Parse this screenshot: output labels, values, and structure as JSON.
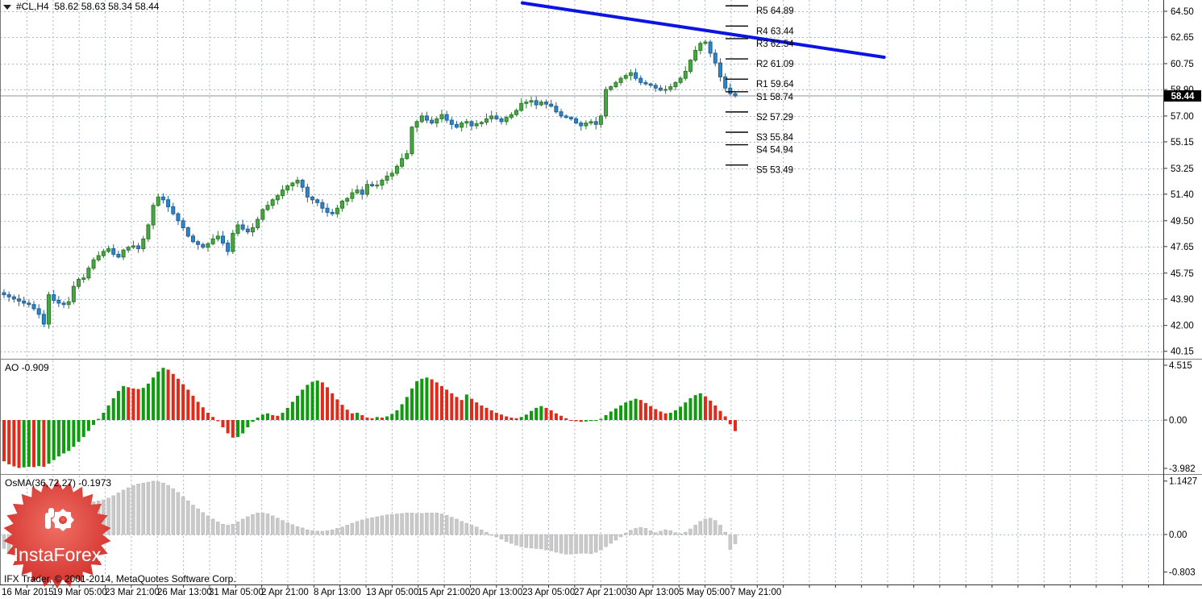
{
  "header": {
    "symbol_line": "#CL,H4  58.62 58.63 58.34 58.44"
  },
  "indicator_labels": {
    "ao": "AO -0.909",
    "osma": "OsMA(36,72,27) -0.1973"
  },
  "footer": {
    "copyright": "IFX Trader, © 2001-2014, MetaQuotes Software Corp."
  },
  "logo": {
    "text": "InstaForex",
    "color_outer": "#cf2b26",
    "color_inner": "#ef6f64"
  },
  "chart_data": {
    "type": "candlestick",
    "symbol": "#CL",
    "timeframe": "H4",
    "title": "#CL,H4",
    "last_quote": {
      "open": 58.62,
      "high": 58.63,
      "low": 58.34,
      "close": 58.44
    },
    "current_price_label": "58.44",
    "price_axis_ticks": [
      "64.50",
      "62.65",
      "60.75",
      "58.90",
      "57.00",
      "55.15",
      "53.25",
      "51.40",
      "49.50",
      "47.65",
      "45.75",
      "43.90",
      "42.00",
      "40.15"
    ],
    "time_axis_labels": [
      "16 Mar 2015",
      "19 Mar 05:00",
      "23 Mar 21:00",
      "26 Mar 13:00",
      "31 Mar 05:00",
      "2 Apr 21:00",
      "8 Apr 13:00",
      "13 Apr 05:00",
      "15 Apr 21:00",
      "20 Apr 13:00",
      "23 Apr 05:00",
      "27 Apr 21:00",
      "30 Apr 13:00",
      "5 May 05:00",
      "7 May 21:00"
    ],
    "pivot_levels": [
      {
        "label": "R5 64.89",
        "price": 64.89
      },
      {
        "label": "R4 63.44",
        "price": 63.44
      },
      {
        "label": "R3 62.54",
        "price": 62.54
      },
      {
        "label": "R2 61.09",
        "price": 61.09
      },
      {
        "label": "R1 59.64",
        "price": 59.64
      },
      {
        "label": "S1 58.74",
        "price": 58.74
      },
      {
        "label": "S2 57.29",
        "price": 57.29
      },
      {
        "label": "S3 55.84",
        "price": 55.84
      },
      {
        "label": "S4 54.94",
        "price": 54.94
      },
      {
        "label": "S5 53.49",
        "price": 53.49
      }
    ],
    "trendline": {
      "x1_frac": 0.449,
      "price1": 65.1,
      "x2_frac": 0.76,
      "price2": 61.21,
      "color": "#0b14e0"
    },
    "close_path": [
      44.2,
      44.05,
      43.9,
      43.75,
      43.6,
      43.5,
      43.2,
      42.8,
      42.1,
      44.2,
      43.8,
      43.6,
      43.5,
      43.7,
      44.8,
      45.3,
      45.4,
      46.1,
      46.7,
      47.0,
      47.3,
      47.5,
      47.1,
      46.9,
      47.4,
      47.6,
      47.7,
      47.5,
      48.2,
      49.2,
      50.6,
      51.2,
      51.0,
      50.5,
      50.0,
      49.5,
      49.0,
      48.4,
      48.0,
      47.8,
      47.6,
      47.85,
      48.2,
      48.4,
      47.9,
      47.3,
      48.6,
      49.2,
      48.9,
      48.7,
      49.0,
      49.6,
      50.3,
      50.6,
      51.0,
      51.3,
      51.7,
      52.0,
      52.2,
      52.4,
      51.9,
      51.2,
      51.0,
      50.8,
      50.4,
      50.1,
      50.0,
      50.4,
      50.9,
      51.1,
      51.5,
      51.7,
      51.4,
      52.1,
      52.0,
      52.05,
      52.4,
      52.7,
      52.9,
      53.4,
      53.95,
      54.3,
      56.2,
      56.6,
      57.0,
      56.7,
      56.5,
      56.8,
      57.1,
      56.7,
      56.4,
      56.2,
      56.5,
      56.6,
      56.3,
      56.45,
      56.55,
      56.8,
      57.0,
      56.8,
      56.6,
      56.9,
      57.1,
      57.4,
      57.9,
      58.0,
      58.1,
      57.8,
      58.0,
      57.85,
      57.7,
      57.3,
      57.0,
      56.9,
      56.8,
      56.5,
      56.3,
      56.5,
      56.6,
      56.4,
      57.0,
      58.9,
      59.1,
      59.4,
      59.7,
      59.9,
      60.1,
      59.7,
      59.4,
      59.3,
      59.2,
      59.0,
      58.85,
      58.9,
      59.1,
      59.4,
      59.7,
      60.2,
      61.0,
      61.7,
      62.2,
      62.3,
      61.5,
      60.8,
      59.8,
      59.0,
      58.6,
      58.44
    ],
    "indicators": [
      {
        "name": "AO",
        "current": -0.909,
        "axis_ticks": [
          "4.515",
          "0.00",
          "-3.982"
        ],
        "color_up": "#0e9c0e",
        "color_down": "#e02a1a",
        "values": [
          -3.4,
          -3.65,
          -3.82,
          -3.95,
          -3.9,
          -3.85,
          -3.88,
          -3.8,
          -3.85,
          -3.6,
          -3.3,
          -3.0,
          -2.75,
          -2.55,
          -2.2,
          -1.8,
          -1.4,
          -0.9,
          -0.4,
          0.1,
          0.6,
          1.2,
          1.8,
          2.4,
          2.8,
          2.7,
          2.6,
          2.55,
          2.65,
          3.0,
          3.5,
          4.0,
          4.3,
          4.15,
          3.8,
          3.4,
          2.95,
          2.5,
          2.0,
          1.5,
          1.05,
          0.6,
          0.25,
          -0.1,
          -0.6,
          -1.1,
          -1.45,
          -1.4,
          -1.1,
          -0.6,
          -0.15,
          0.2,
          0.45,
          0.55,
          0.4,
          0.35,
          0.6,
          1.0,
          1.5,
          2.0,
          2.5,
          2.9,
          3.15,
          3.25,
          3.1,
          2.7,
          2.2,
          1.7,
          1.25,
          0.85,
          0.55,
          0.6,
          0.4,
          0.2,
          0.15,
          0.25,
          0.2,
          0.3,
          0.5,
          0.8,
          1.3,
          1.9,
          2.6,
          3.2,
          3.4,
          3.5,
          3.35,
          3.1,
          2.8,
          2.5,
          2.2,
          1.9,
          1.65,
          2.1,
          1.75,
          1.45,
          1.2,
          1.0,
          0.8,
          0.6,
          0.45,
          0.3,
          0.2,
          0.15,
          0.25,
          0.45,
          0.75,
          1.0,
          1.15,
          1.0,
          0.8,
          0.55,
          0.35,
          0.15,
          0.0,
          -0.1,
          -0.15,
          -0.12,
          -0.08,
          -0.05,
          0.1,
          0.4,
          0.7,
          0.95,
          1.2,
          1.45,
          1.6,
          1.75,
          1.65,
          1.4,
          1.15,
          0.9,
          0.7,
          0.55,
          0.6,
          0.8,
          1.1,
          1.45,
          1.8,
          2.05,
          2.2,
          1.95,
          1.6,
          1.2,
          0.75,
          0.3,
          -0.35,
          -0.909
        ]
      },
      {
        "name": "OsMA",
        "params": [
          36,
          72,
          27
        ],
        "current": -0.1973,
        "axis_ticks": [
          "1.1427",
          "0.00",
          "-0.803"
        ],
        "color": "#c9c9c9",
        "values": [
          -0.3,
          -0.38,
          -0.44,
          -0.47,
          -0.45,
          -0.4,
          -0.32,
          -0.22,
          -0.12,
          -0.02,
          0.08,
          0.18,
          0.28,
          0.38,
          0.48,
          0.56,
          0.62,
          0.66,
          0.7,
          0.72,
          0.74,
          0.78,
          0.83,
          0.89,
          0.95,
          1.0,
          1.05,
          1.08,
          1.1,
          1.12,
          1.14,
          1.13,
          1.1,
          1.05,
          0.98,
          0.9,
          0.81,
          0.72,
          0.63,
          0.55,
          0.47,
          0.4,
          0.33,
          0.27,
          0.22,
          0.2,
          0.22,
          0.27,
          0.33,
          0.38,
          0.43,
          0.46,
          0.46,
          0.44,
          0.4,
          0.35,
          0.3,
          0.25,
          0.21,
          0.17,
          0.14,
          0.1,
          0.08,
          0.07,
          0.07,
          0.08,
          0.1,
          0.13,
          0.16,
          0.2,
          0.24,
          0.28,
          0.31,
          0.34,
          0.36,
          0.38,
          0.4,
          0.42,
          0.43,
          0.44,
          0.45,
          0.46,
          0.46,
          0.45,
          0.45,
          0.46,
          0.46,
          0.46,
          0.44,
          0.41,
          0.37,
          0.33,
          0.28,
          0.24,
          0.2,
          0.16,
          0.1,
          0.05,
          0.0,
          -0.05,
          -0.1,
          -0.15,
          -0.19,
          -0.23,
          -0.26,
          -0.28,
          -0.29,
          -0.3,
          -0.31,
          -0.33,
          -0.35,
          -0.38,
          -0.4,
          -0.42,
          -0.42,
          -0.41,
          -0.4,
          -0.4,
          -0.41,
          -0.38,
          -0.33,
          -0.26,
          -0.19,
          -0.12,
          -0.05,
          0.03,
          0.09,
          0.13,
          0.15,
          0.13,
          0.08,
          0.04,
          0.07,
          0.1,
          0.08,
          0.04,
          0.02,
          0.05,
          0.12,
          0.2,
          0.28,
          0.33,
          0.35,
          0.3,
          0.2,
          0.05,
          -0.32,
          -0.1973
        ]
      }
    ],
    "colors": {
      "candle_up": "#4aa545",
      "candle_up_border": "#2d7a2a",
      "candle_down": "#2f86c6",
      "candle_down_border": "#1e5f98",
      "grid": "#a9b7c6",
      "bid_line": "#9aa0a0",
      "badge_bg": "#000000",
      "badge_fg": "#ffffff"
    },
    "layout_hints": {
      "grid": "dashed",
      "panels": [
        "price",
        "AO",
        "OsMA"
      ],
      "legend_position": "none"
    }
  }
}
